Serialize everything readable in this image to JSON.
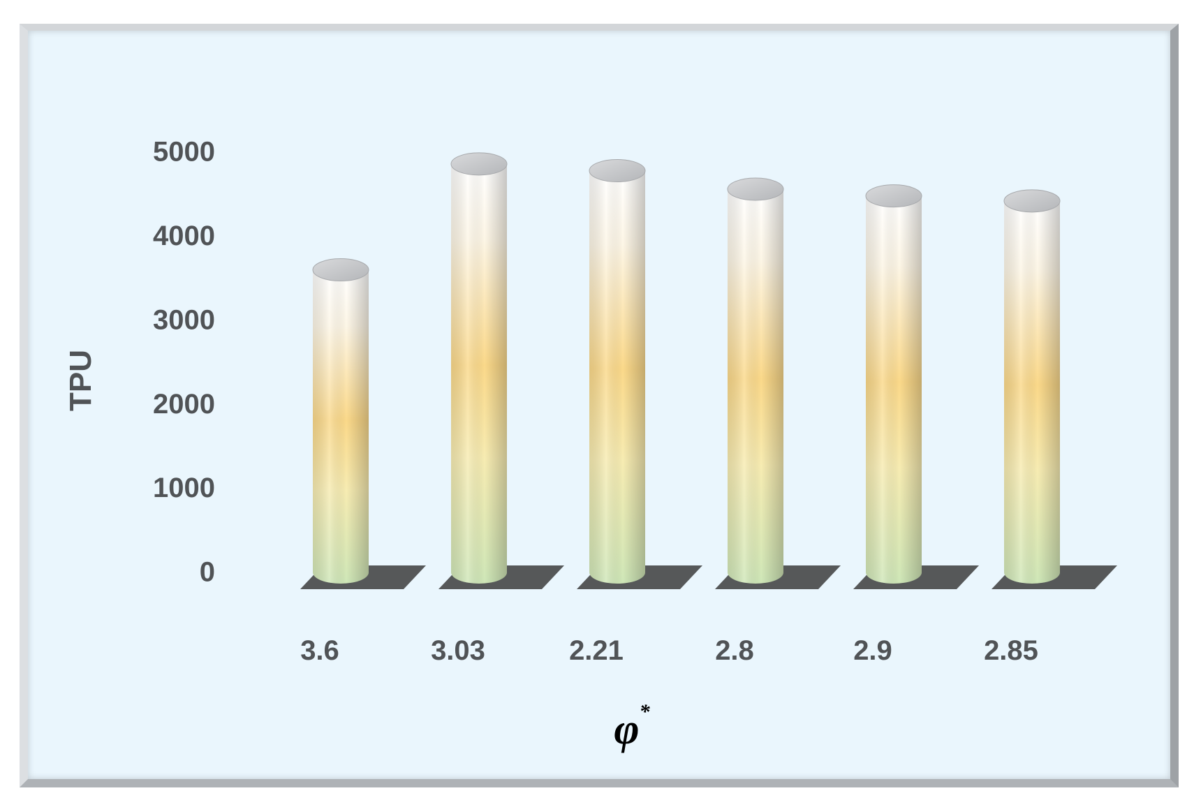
{
  "chart_data": {
    "type": "bar",
    "style": "3d-cylinder",
    "categories": [
      "3.6",
      "3.03",
      "2.21",
      "2.8",
      "2.9",
      "2.85"
    ],
    "values": [
      3600,
      4860,
      4780,
      4560,
      4480,
      4420
    ],
    "xlabel": "φ",
    "xlabel_superscript": "*",
    "ylabel": "TPU",
    "ylim": [
      0,
      5000
    ],
    "yticks": [
      0,
      1000,
      2000,
      3000,
      4000,
      5000
    ],
    "grid": false,
    "legend": "none",
    "colors": {
      "background": "#eaf6fd",
      "bar_top": "#ffffff",
      "bar_middle": "#fbd98a",
      "bar_bottom": "#cfe7b8",
      "bar_cap": "#c9cacd",
      "shadow": "#3c3c3c",
      "tick_text": "#505356"
    }
  }
}
